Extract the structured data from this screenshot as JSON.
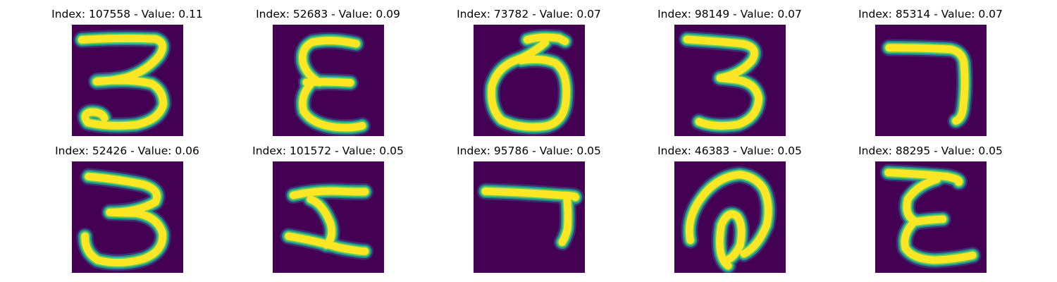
{
  "colors": {
    "background": "#440154",
    "stroke_edge": "#21918c",
    "stroke_mid": "#5ec962",
    "stroke_core": "#fde725",
    "stroke_glow": "#3b528b"
  },
  "chart_data": [
    {
      "type": "image",
      "title": "Index: 107558 - Value: 0.11",
      "index": 107558,
      "value": 0.11,
      "glyph": "three-with-loop"
    },
    {
      "type": "image",
      "title": "Index: 52683 - Value: 0.09",
      "index": 52683,
      "value": 0.09,
      "glyph": "epsilon"
    },
    {
      "type": "image",
      "title": "Index: 73782 - Value: 0.07",
      "index": 73782,
      "value": 0.07,
      "glyph": "loop-with-flag"
    },
    {
      "type": "image",
      "title": "Index: 98149 - Value: 0.07",
      "index": 98149,
      "value": 0.07,
      "glyph": "three"
    },
    {
      "type": "image",
      "title": "Index: 85314 - Value: 0.07",
      "index": 85314,
      "value": 0.07,
      "glyph": "seven"
    },
    {
      "type": "image",
      "title": "Index: 52426 - Value: 0.06",
      "index": 52426,
      "value": 0.06,
      "glyph": "three-bold"
    },
    {
      "type": "image",
      "title": "Index: 101572 - Value: 0.05",
      "index": 101572,
      "value": 0.05,
      "glyph": "z-shape"
    },
    {
      "type": "image",
      "title": "Index: 95786 - Value: 0.05",
      "index": 95786,
      "value": 0.05,
      "glyph": "seven-thin"
    },
    {
      "type": "image",
      "title": "Index: 46383 - Value: 0.05",
      "index": 46383,
      "value": 0.05,
      "glyph": "at-sign"
    },
    {
      "type": "image",
      "title": "Index: 88295 - Value: 0.05",
      "index": 88295,
      "value": 0.05,
      "glyph": "epsilon-wide"
    }
  ]
}
